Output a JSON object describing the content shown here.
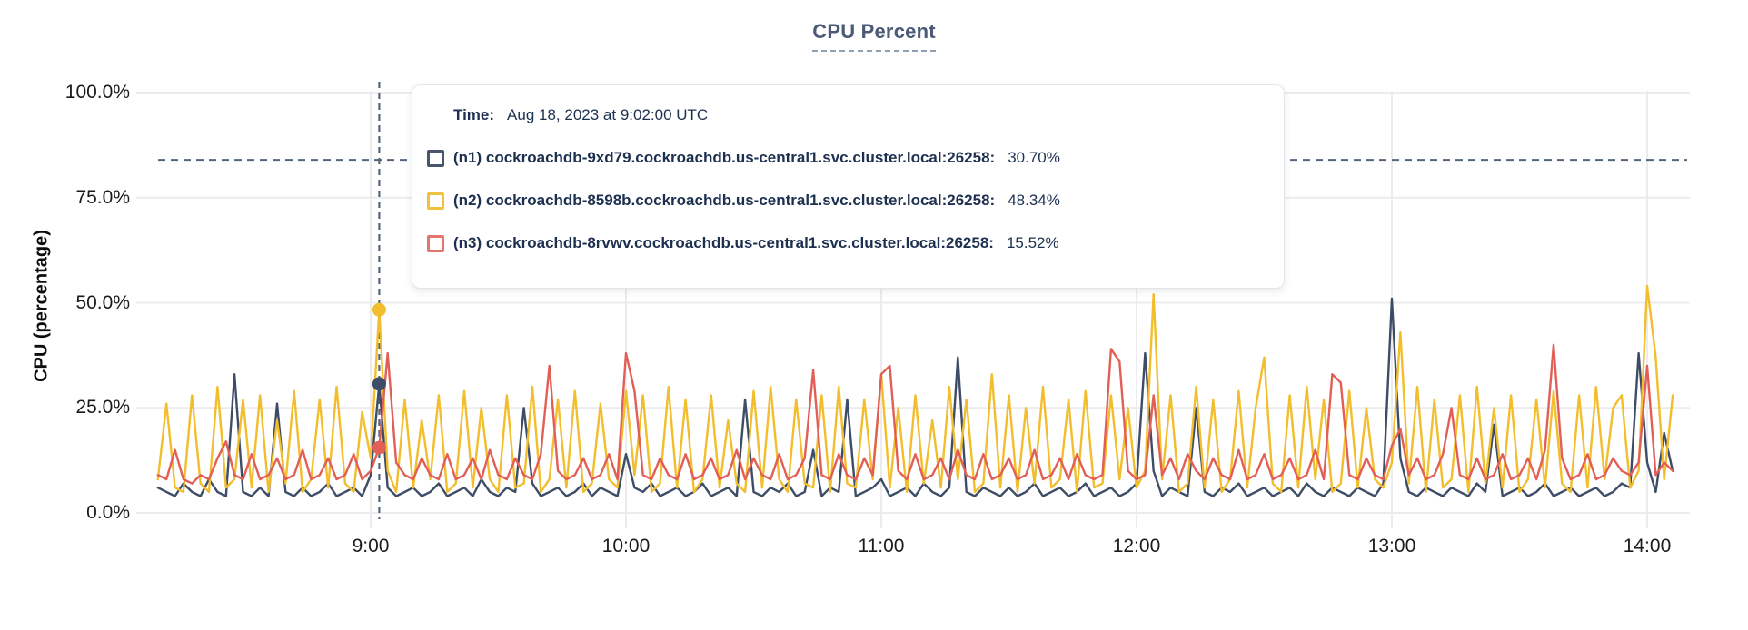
{
  "title": "CPU Percent",
  "tooltip": {
    "time_label": "Time:",
    "time_value": "Aug 18, 2023 at 9:02:00 UTC",
    "rows": [
      {
        "series": "n1",
        "label": "(n1) cockroachdb-9xd79.cockroachdb.us-central1.svc.cluster.local:26258:",
        "value": "30.70%",
        "color": "#47566c"
      },
      {
        "series": "n2",
        "label": "(n2) cockroachdb-8598b.cockroachdb.us-central1.svc.cluster.local:26258:",
        "value": "48.34%",
        "color": "#f0c13f"
      },
      {
        "series": "n3",
        "label": "(n3) cockroachdb-8rvwv.cockroachdb.us-central1.svc.cluster.local:26258:",
        "value": "15.52%",
        "color": "#e4756d"
      }
    ]
  },
  "hover": {
    "time_minutes": 542,
    "time_text": "9:02",
    "points": [
      {
        "series": "n1",
        "value": 30.7,
        "color": "#3d4c67"
      },
      {
        "series": "n2",
        "value": 48.34,
        "color": "#f2be2d"
      },
      {
        "series": "n3",
        "value": 15.52,
        "color": "#e15f56"
      }
    ]
  },
  "chart_data": {
    "type": "line",
    "title": "CPU Percent",
    "xlabel": "",
    "ylabel": "CPU (percentage)",
    "ylim": [
      0,
      100
    ],
    "grid": true,
    "threshold_percent": 84,
    "x_start_minutes": 490,
    "x_step_minutes": 2,
    "x_ticks": [
      {
        "label": "9:00",
        "minutes": 540
      },
      {
        "label": "10:00",
        "minutes": 600
      },
      {
        "label": "11:00",
        "minutes": 660
      },
      {
        "label": "12:00",
        "minutes": 720
      },
      {
        "label": "13:00",
        "minutes": 780
      },
      {
        "label": "14:00",
        "minutes": 840
      }
    ],
    "y_ticks": [
      {
        "label": "100.0%",
        "value": 100
      },
      {
        "label": "75.0%",
        "value": 75
      },
      {
        "label": "50.0%",
        "value": 50
      },
      {
        "label": "25.0%",
        "value": 25
      },
      {
        "label": "0.0%",
        "value": 0
      }
    ],
    "series": [
      {
        "id": "n1",
        "name": "cockroachdb-9xd79.cockroachdb.us-central1.svc.cluster.local:26258",
        "color": "#3d4c67",
        "values": [
          6,
          5,
          4,
          7,
          5,
          4,
          8,
          5,
          4,
          33,
          5,
          4,
          6,
          4,
          26,
          5,
          4,
          6,
          4,
          5,
          7,
          4,
          5,
          6,
          4,
          9,
          30.7,
          6,
          4,
          5,
          6,
          4,
          5,
          7,
          4,
          5,
          6,
          4,
          8,
          5,
          4,
          6,
          5,
          25,
          7,
          4,
          5,
          6,
          4,
          5,
          7,
          4,
          6,
          5,
          4,
          14,
          6,
          5,
          7,
          4,
          5,
          6,
          4,
          5,
          7,
          4,
          5,
          6,
          4,
          27,
          5,
          4,
          6,
          5,
          7,
          4,
          5,
          15,
          4,
          6,
          5,
          27,
          4,
          5,
          6,
          8,
          4,
          5,
          6,
          4,
          7,
          5,
          4,
          6,
          37,
          5,
          4,
          6,
          5,
          4,
          6,
          4,
          5,
          7,
          4,
          5,
          6,
          4,
          5,
          7,
          4,
          5,
          6,
          4,
          5,
          7,
          38,
          10,
          4,
          6,
          5,
          4,
          25,
          5,
          4,
          6,
          5,
          7,
          4,
          5,
          6,
          4,
          5,
          6,
          4,
          7,
          5,
          4,
          6,
          5,
          4,
          6,
          5,
          4,
          7,
          51,
          13,
          5,
          4,
          6,
          5,
          4,
          6,
          5,
          4,
          7,
          5,
          21,
          4,
          5,
          6,
          4,
          5,
          7,
          4,
          5,
          6,
          4,
          5,
          6,
          4,
          5,
          7,
          6,
          38,
          12,
          5,
          19,
          10
        ]
      },
      {
        "id": "n2",
        "name": "cockroachdb-8598b.cockroachdb.us-central1.svc.cluster.local:26258",
        "color": "#f2be2d",
        "values": [
          8,
          26,
          6,
          5,
          28,
          7,
          5,
          30,
          6,
          8,
          27,
          6,
          28,
          5,
          22,
          7,
          29,
          5,
          8,
          27,
          6,
          30,
          7,
          5,
          24,
          13,
          48.3,
          10,
          5,
          27,
          6,
          22,
          8,
          28,
          5,
          7,
          29,
          6,
          25,
          8,
          5,
          28,
          6,
          7,
          30,
          5,
          8,
          27,
          6,
          29,
          5,
          7,
          26,
          8,
          6,
          29,
          9,
          28,
          5,
          7,
          30,
          6,
          27,
          5,
          8,
          28,
          6,
          22,
          7,
          5,
          29,
          6,
          30,
          8,
          5,
          27,
          7,
          6,
          28,
          5,
          30,
          7,
          6,
          27,
          8,
          33,
          6,
          25,
          5,
          28,
          7,
          22,
          6,
          30,
          8,
          27,
          5,
          7,
          33,
          6,
          28,
          5,
          25,
          7,
          30,
          6,
          8,
          27,
          5,
          29,
          6,
          7,
          28,
          8,
          25,
          6,
          10,
          52,
          8,
          28,
          5,
          7,
          30,
          6,
          27,
          5,
          8,
          29,
          6,
          25,
          37,
          7,
          5,
          28,
          6,
          30,
          8,
          27,
          5,
          7,
          29,
          6,
          25,
          8,
          6,
          12,
          43,
          7,
          30,
          5,
          27,
          6,
          8,
          28,
          5,
          30,
          7,
          25,
          6,
          28,
          5,
          8,
          27,
          6,
          29,
          7,
          5,
          28,
          6,
          30,
          8,
          25,
          28,
          6,
          10,
          54,
          37,
          8,
          28
        ]
      },
      {
        "id": "n3",
        "name": "cockroachdb-8rvwv.cockroachdb.us-central1.svc.cluster.local:26258",
        "color": "#e15f56",
        "values": [
          9,
          8,
          15,
          8,
          7,
          9,
          8,
          13,
          17,
          9,
          8,
          14,
          8,
          9,
          13,
          8,
          9,
          15,
          8,
          9,
          13,
          8,
          9,
          14,
          8,
          10,
          15.5,
          38,
          12,
          9,
          8,
          13,
          9,
          8,
          14,
          8,
          9,
          13,
          8,
          15,
          9,
          8,
          13,
          9,
          8,
          14,
          35,
          10,
          8,
          9,
          13,
          8,
          9,
          14,
          8,
          38,
          29,
          9,
          8,
          13,
          9,
          8,
          14,
          8,
          9,
          13,
          8,
          9,
          15,
          8,
          13,
          9,
          8,
          14,
          8,
          9,
          13,
          34,
          9,
          8,
          14,
          9,
          8,
          13,
          9,
          33,
          35,
          10,
          8,
          14,
          8,
          9,
          13,
          8,
          15,
          9,
          8,
          14,
          8,
          9,
          13,
          8,
          9,
          15,
          8,
          9,
          13,
          8,
          14,
          9,
          8,
          9,
          39,
          36,
          10,
          8,
          9,
          28,
          9,
          13,
          8,
          14,
          10,
          8,
          13,
          9,
          8,
          15,
          8,
          9,
          14,
          8,
          9,
          13,
          8,
          9,
          15,
          8,
          33,
          31,
          9,
          8,
          13,
          9,
          8,
          16,
          20,
          9,
          13,
          8,
          9,
          14,
          25,
          9,
          8,
          13,
          8,
          9,
          14,
          8,
          9,
          13,
          8,
          15,
          40,
          13,
          8,
          9,
          14,
          8,
          9,
          13,
          10,
          9,
          12,
          35,
          9,
          12,
          10
        ]
      }
    ]
  },
  "colors": {
    "gridline": "#ececee",
    "dashed_line": "#53667d",
    "tick_text": "#1a1b1d",
    "title_text": "#4a5a77",
    "tooltip_text": "#1d3050"
  }
}
